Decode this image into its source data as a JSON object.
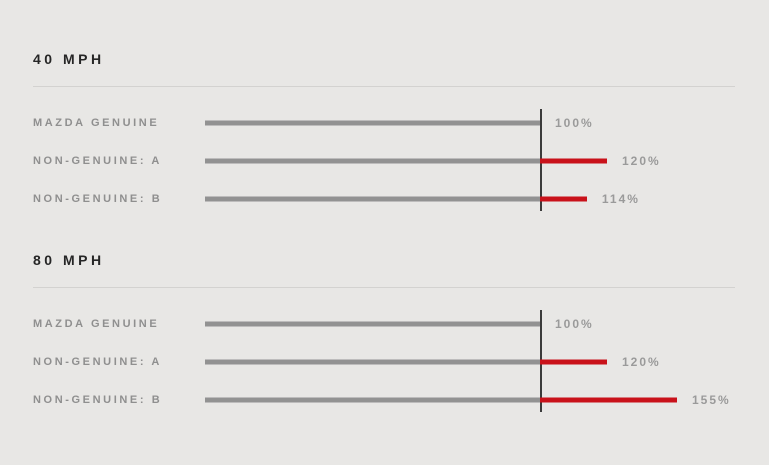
{
  "colors": {
    "background": "#e8e7e5",
    "genuine_bar": "#929292",
    "overshoot_bar": "#c9121a",
    "baseline_line": "#3b3b3b",
    "section_title": "#262626",
    "row_label": "#8f8f8f",
    "value_label": "#9a9a9a",
    "divider": "#d3d2d0"
  },
  "chart_data": [
    {
      "type": "bar",
      "title": "40 MPH",
      "orientation": "horizontal",
      "baseline_pct": 100,
      "categories": [
        "MAZDA GENUINE",
        "NON-GENUINE: A",
        "NON-GENUINE: B"
      ],
      "values": [
        100,
        120,
        114
      ],
      "value_labels": [
        "100%",
        "120%",
        "114%"
      ],
      "xlabel": "",
      "ylabel": "",
      "xlim": [
        0,
        160
      ],
      "grid": false,
      "legend": "none"
    },
    {
      "type": "bar",
      "title": "80 MPH",
      "orientation": "horizontal",
      "baseline_pct": 100,
      "categories": [
        "MAZDA GENUINE",
        "NON-GENUINE: A",
        "NON-GENUINE: B"
      ],
      "values": [
        100,
        120,
        155
      ],
      "value_labels": [
        "100%",
        "120%",
        "155%"
      ],
      "xlabel": "",
      "ylabel": "",
      "xlim": [
        0,
        160
      ],
      "grid": false,
      "legend": "none"
    }
  ]
}
